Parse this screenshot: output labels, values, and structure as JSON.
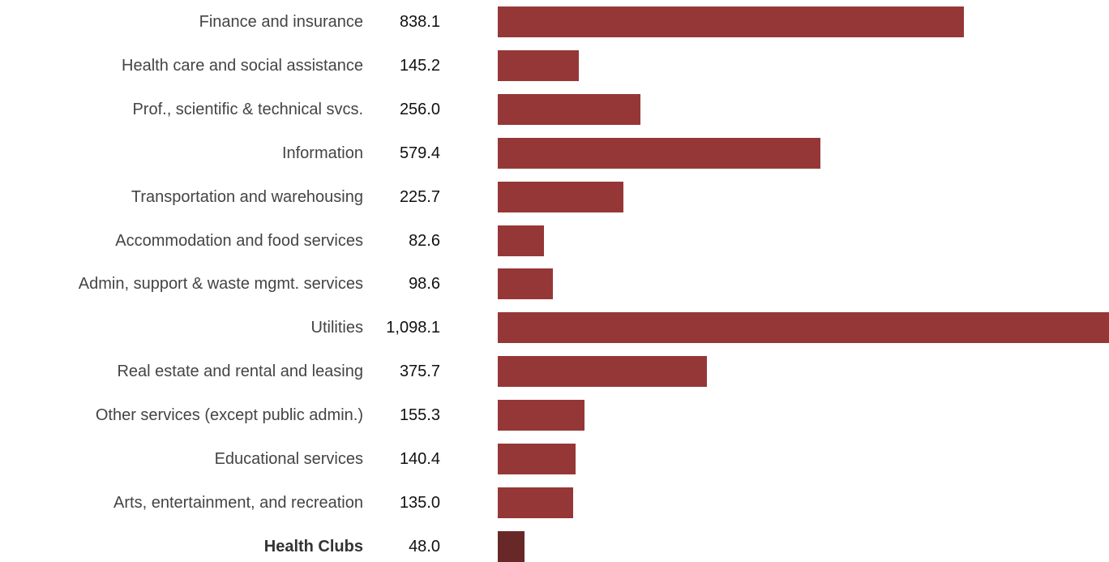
{
  "chart_data": {
    "type": "bar",
    "orientation": "horizontal",
    "categories": [
      "Finance and insurance",
      "Health care and social assistance",
      "Prof., scientific & technical svcs.",
      "Information",
      "Transportation and warehousing",
      "Accommodation and food services",
      "Admin, support & waste mgmt. services",
      "Utilities",
      "Real estate and rental and leasing",
      "Other services (except public admin.)",
      "Educational services",
      "Arts, entertainment, and recreation",
      "Health Clubs"
    ],
    "values": [
      838.1,
      145.2,
      256.0,
      579.4,
      225.7,
      82.6,
      98.6,
      1098.1,
      375.7,
      155.3,
      140.4,
      135.0,
      48.0
    ],
    "value_labels": [
      "838.1",
      "145.2",
      "256.0",
      "579.4",
      "225.7",
      "82.6",
      "98.6",
      "1,098.1",
      "375.7",
      "155.3",
      "140.4",
      "135.0",
      "48.0"
    ],
    "highlight": "Health Clubs",
    "xlim": [
      0,
      1098.1
    ],
    "grid": false,
    "colors": {
      "bar": "#963737",
      "highlight_bar": "#692828"
    }
  }
}
